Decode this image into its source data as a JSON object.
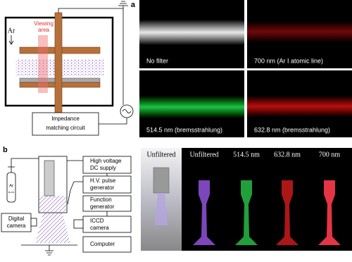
{
  "panel_a": {
    "label": "a",
    "gas": "Ar",
    "viewing_area": [
      "Viewing",
      "area"
    ],
    "circuit": [
      "Impedance",
      "matching circuit"
    ],
    "photos": [
      "No filter",
      "700 nm (Ar I atomic line)",
      "514.5 nm (bremsstrahlung)",
      "632.8 nm (bremsstrahlung)"
    ]
  },
  "panel_b": {
    "label": "b",
    "gas": "Ar",
    "purity": "99.9%",
    "instruments": [
      [
        "High voltage",
        "DC supply"
      ],
      [
        "H.V. pulse",
        "generator"
      ],
      [
        "Function",
        "generator"
      ],
      [
        "ICCD",
        "camera"
      ],
      [
        "Computer"
      ]
    ],
    "camera": [
      "Digital",
      "camera"
    ],
    "photos": [
      "Unfiltered",
      "Unfiltered",
      "514.5 nm",
      "632.8 nm",
      "700 nm"
    ]
  }
}
